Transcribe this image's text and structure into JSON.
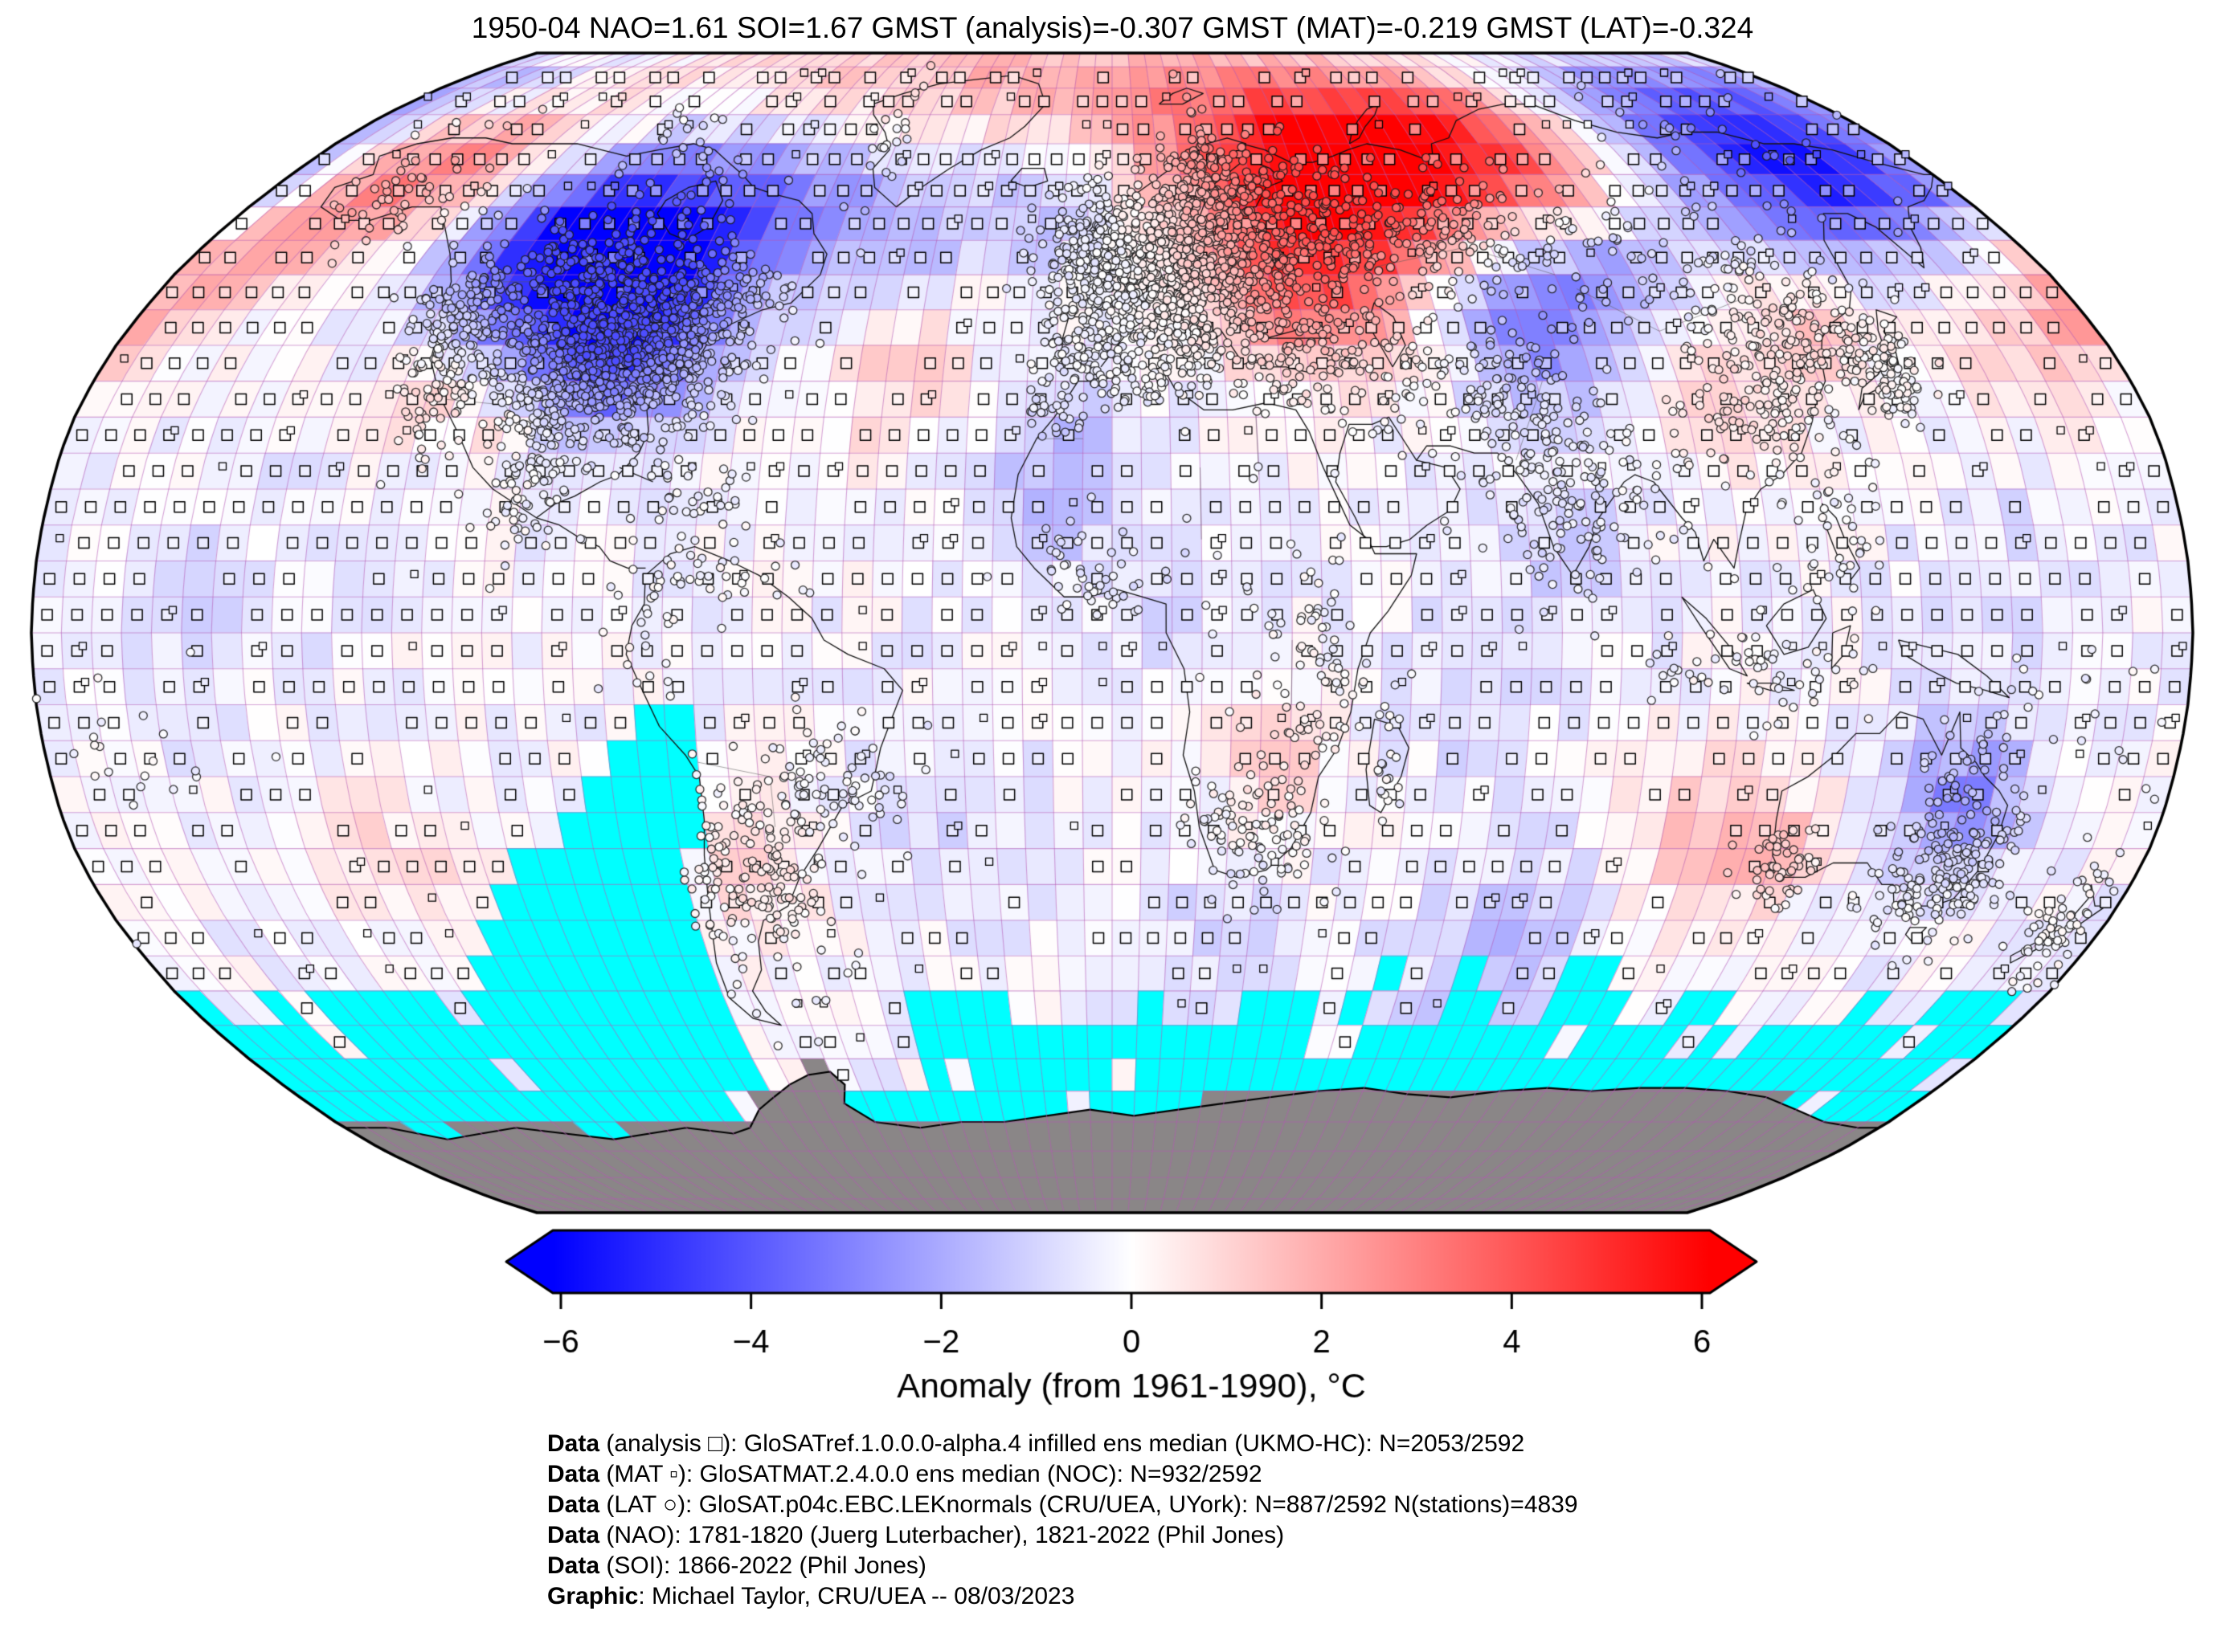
{
  "title": "1950-04 NAO=1.61 SOI=1.67 GMST (analysis)=-0.307 GMST (MAT)=-0.219 GMST (LAT)=-0.324",
  "colorbar": {
    "label": "Anomaly (from 1961-1990), °C",
    "tick_values": [
      -6,
      -4,
      -2,
      0,
      2,
      4,
      6
    ],
    "tick_labels": [
      "−6",
      "−4",
      "−2",
      "0",
      "2",
      "4",
      "6"
    ],
    "min": -6,
    "max": 6,
    "colors": {
      "left": "#0000ff",
      "mid": "#ffffff",
      "right": "#ff0000"
    }
  },
  "footer": {
    "lines": [
      {
        "bold": "Data",
        "text": " (analysis □): GloSATref.1.0.0.0-alpha.4 infilled ens median (UKMO-HC): N=2053/2592"
      },
      {
        "bold": "Data",
        "text": " (MAT ▫): GloSATMAT.2.4.0.0 ens median (NOC): N=932/2592"
      },
      {
        "bold": "Data",
        "text": " (LAT ○): GloSAT.p04c.EBC.LEKnormals (CRU/UEA, UYork): N=887/2592 N(stations)=4839"
      },
      {
        "bold": "Data",
        "text": " (NAO): 1781-1820 (Juerg Luterbacher), 1821-2022 (Phil Jones)"
      },
      {
        "bold": "Data",
        "text": " (SOI): 1866-2022 (Phil Jones)"
      },
      {
        "bold": "Graphic",
        "text": ": Michael Taylor, CRU/UEA -- 08/03/2023"
      }
    ]
  },
  "chart_data": {
    "type": "heatmap",
    "subtype": "global-anomaly-map",
    "projection": "robinson",
    "grid_resolution_deg": 5,
    "period": "1950-04",
    "baseline": "1961-1990",
    "indices": {
      "NAO": 1.61,
      "SOI": 1.67,
      "GMST_analysis": -0.307,
      "GMST_MAT": -0.219,
      "GMST_LAT": -0.324
    },
    "coverage": {
      "analysis_cells": "2053/2592",
      "mat_cells": "932/2592",
      "lat_cells": "887/2592",
      "n_stations": 4839
    },
    "anomaly_range_c": [
      -6,
      6
    ],
    "legend_markers": {
      "analysis": "open-square",
      "mat": "small-open-square",
      "lat": "open-circle"
    },
    "colors": {
      "missing_or_sea_ice": "#00ffff",
      "antarctica_no_data": "#8a8687",
      "gridlines": "#b45ab4",
      "coastlines": "#111111",
      "map_border": "#000000"
    },
    "base_anomaly": -0.2,
    "noise_amplitude": 1.1,
    "anomaly_blobs_format": "[lon_deg, lat_deg, peak_anomaly_c, sigma_deg]",
    "anomaly_blobs": [
      [
        -97,
        50,
        -5.4,
        12
      ],
      [
        -88,
        41,
        -3.0,
        8
      ],
      [
        -111,
        57,
        -2.0,
        7
      ],
      [
        -160,
        62,
        2.6,
        9
      ],
      [
        -173,
        55,
        1.4,
        7
      ],
      [
        -143,
        69,
        1.6,
        7
      ],
      [
        -120,
        34,
        1.7,
        6
      ],
      [
        -104,
        31,
        1.6,
        6
      ],
      [
        -75,
        60,
        -1.5,
        7
      ],
      [
        -45,
        56,
        -1.6,
        8
      ],
      [
        -45,
        83,
        1.6,
        8
      ],
      [
        -38,
        36,
        1.2,
        9
      ],
      [
        -12,
        59,
        -1.2,
        6
      ],
      [
        -10,
        22,
        -1.5,
        9
      ],
      [
        10,
        6,
        -0.7,
        8
      ],
      [
        55,
        67,
        5.8,
        12
      ],
      [
        40,
        54,
        2.6,
        10
      ],
      [
        33,
        44,
        1.6,
        7
      ],
      [
        90,
        71,
        2.0,
        9
      ],
      [
        78,
        45,
        -3.4,
        9
      ],
      [
        100,
        51,
        -1.6,
        7
      ],
      [
        150,
        66,
        -4.4,
        10
      ],
      [
        140,
        79,
        -2.2,
        8
      ],
      [
        175,
        63,
        -1.8,
        7
      ],
      [
        105,
        33,
        1.5,
        8
      ],
      [
        127,
        43,
        1.4,
        6
      ],
      [
        160,
        41,
        1.4,
        8
      ],
      [
        178,
        43,
        1.7,
        6
      ],
      [
        75,
        12,
        -0.8,
        9
      ],
      [
        145,
        -23,
        -2.5,
        8
      ],
      [
        103,
        -29,
        1.7,
        9
      ],
      [
        118,
        -30,
        1.2,
        5
      ],
      [
        28,
        -17,
        1.3,
        7
      ],
      [
        -62,
        -33,
        1.1,
        7
      ],
      [
        -125,
        -30,
        0.9,
        9
      ],
      [
        75,
        -45,
        -1.3,
        10
      ],
      [
        -30,
        -25,
        -0.6,
        10
      ],
      [
        150,
        10,
        -0.5,
        10
      ],
      [
        -150,
        5,
        -0.5,
        12
      ],
      [
        20,
        -42,
        -0.8,
        8
      ],
      [
        60,
        -10,
        -0.6,
        9
      ]
    ],
    "station_clusters_format": "[lon_deg, lat_deg, count, sigma_lon_deg, sigma_lat_deg]",
    "station_clusters": [
      [
        -85,
        39,
        650,
        9,
        6
      ],
      [
        -98,
        38,
        250,
        6,
        8
      ],
      [
        -117,
        39,
        160,
        5,
        7
      ],
      [
        -122,
        45,
        60,
        3,
        5
      ],
      [
        -100,
        52,
        130,
        12,
        4
      ],
      [
        -75,
        46,
        80,
        6,
        4
      ],
      [
        -100,
        22,
        70,
        5,
        6
      ],
      [
        -70,
        19,
        30,
        6,
        3
      ],
      [
        10,
        50,
        800,
        10,
        6
      ],
      [
        -4,
        53,
        150,
        4,
        4
      ],
      [
        -4,
        40,
        80,
        4,
        4
      ],
      [
        13,
        42,
        90,
        4,
        5
      ],
      [
        22,
        60,
        120,
        6,
        5
      ],
      [
        18,
        65,
        60,
        5,
        5
      ],
      [
        38,
        55,
        220,
        9,
        7
      ],
      [
        60,
        56,
        90,
        10,
        5
      ],
      [
        85,
        55,
        80,
        14,
        6
      ],
      [
        115,
        50,
        50,
        12,
        6
      ],
      [
        125,
        42,
        100,
        6,
        5
      ],
      [
        115,
        33,
        140,
        8,
        7
      ],
      [
        138,
        37,
        110,
        3,
        4
      ],
      [
        78,
        22,
        200,
        8,
        9
      ],
      [
        68,
        35,
        60,
        6,
        5
      ],
      [
        48,
        36,
        80,
        7,
        5
      ],
      [
        30,
        39,
        70,
        6,
        4
      ],
      [
        -8,
        33,
        40,
        4,
        3
      ],
      [
        3,
        36,
        40,
        6,
        2
      ],
      [
        32,
        0,
        60,
        6,
        8
      ],
      [
        -2,
        9,
        50,
        7,
        4
      ],
      [
        25,
        -27,
        110,
        6,
        5
      ],
      [
        37,
        -8,
        30,
        4,
        6
      ],
      [
        47,
        -19,
        20,
        2,
        4
      ],
      [
        147,
        -34,
        180,
        6,
        5
      ],
      [
        117,
        -32,
        50,
        3,
        3
      ],
      [
        145,
        -20,
        40,
        4,
        6
      ],
      [
        172,
        -41,
        70,
        3,
        5
      ],
      [
        -60,
        -33,
        140,
        6,
        8
      ],
      [
        -71,
        -33,
        50,
        2,
        8
      ],
      [
        -47,
        -21,
        70,
        6,
        5
      ],
      [
        -77,
        -2,
        30,
        4,
        8
      ],
      [
        -66,
        8,
        40,
        8,
        4
      ],
      [
        -150,
        62,
        50,
        8,
        5
      ],
      [
        -52,
        70,
        25,
        4,
        8
      ],
      [
        105,
        -5,
        60,
        10,
        4
      ],
      [
        122,
        13,
        40,
        4,
        6
      ],
      [
        -170,
        -15,
        25,
        12,
        8
      ],
      [
        160,
        -9,
        15,
        8,
        5
      ],
      [
        -95,
        68,
        30,
        14,
        4
      ],
      [
        140,
        68,
        30,
        15,
        6
      ]
    ]
  }
}
